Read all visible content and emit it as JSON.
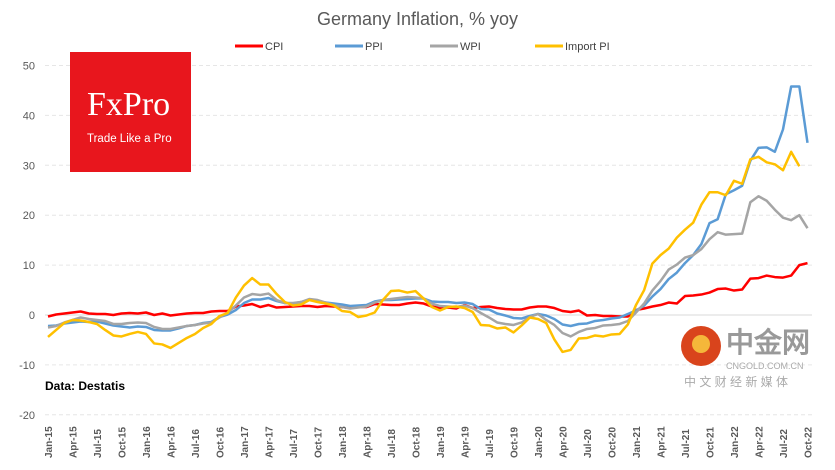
{
  "chart_data": {
    "type": "line",
    "title": "Germany Inflation, % yoy",
    "xlabel": "",
    "ylabel": "",
    "ylim": [
      -20,
      50
    ],
    "yticks": [
      -20,
      -10,
      0,
      10,
      20,
      30,
      40,
      50
    ],
    "x_start": "Jan-15",
    "x_tick_labels": [
      "Jan-15",
      "Apr-15",
      "Jul-15",
      "Oct-15",
      "Jan-16",
      "Apr-16",
      "Jul-16",
      "Oct-16",
      "Jan-17",
      "Apr-17",
      "Jul-17",
      "Oct-17",
      "Jan-18",
      "Apr-18",
      "Jul-18",
      "Oct-18",
      "Jan-19",
      "Apr-19",
      "Jul-19",
      "Oct-19",
      "Jan-20",
      "Apr-20",
      "Jul-20",
      "Oct-20",
      "Jan-21",
      "Apr-21",
      "Jul-21",
      "Oct-21",
      "Jan-22",
      "Apr-22",
      "Jul-22",
      "Oct-22"
    ],
    "grid": true,
    "legend": "top",
    "series": [
      {
        "name": "CPI",
        "color": "#ff0000",
        "values": [
          -0.3,
          0.1,
          0.3,
          0.5,
          0.7,
          0.3,
          0.2,
          0.2,
          0,
          0.3,
          0.4,
          0.3,
          0.5,
          0,
          0.3,
          -0.1,
          0.1,
          0.3,
          0.4,
          0.4,
          0.7,
          0.8,
          0.8,
          1.7,
          1.9,
          2.2,
          1.6,
          2.0,
          1.5,
          1.6,
          1.7,
          1.8,
          1.8,
          1.6,
          1.8,
          1.7,
          1.6,
          1.4,
          1.6,
          1.6,
          2.2,
          2.1,
          2.0,
          2.0,
          2.3,
          2.5,
          2.3,
          1.7,
          1.4,
          1.5,
          1.3,
          2.0,
          1.4,
          1.6,
          1.7,
          1.4,
          1.2,
          1.1,
          1.1,
          1.5,
          1.7,
          1.7,
          1.4,
          0.8,
          0.6,
          0.9,
          -0.1,
          0,
          -0.2,
          -0.2,
          -0.3,
          -0.3,
          1.0,
          1.3,
          1.7,
          2.0,
          2.5,
          2.3,
          3.8,
          3.9,
          4.1,
          4.5,
          5.2,
          5.3,
          4.9,
          5.1,
          7.3,
          7.4,
          7.9,
          7.6,
          7.5,
          7.9,
          10.0,
          10.4
        ]
      },
      {
        "name": "PPI",
        "color": "#5b9bd5",
        "values": [
          -2.2,
          -2.1,
          -1.7,
          -1.5,
          -1.3,
          -1.4,
          -1.3,
          -1.7,
          -2.1,
          -2.3,
          -2.5,
          -2.3,
          -2.4,
          -3.0,
          -3.1,
          -3.1,
          -2.7,
          -2.2,
          -2.0,
          -1.6,
          -1.4,
          -0.4,
          0.1,
          1.0,
          2.4,
          3.1,
          3.1,
          3.4,
          2.8,
          2.4,
          2.3,
          2.6,
          3.1,
          2.7,
          2.5,
          2.3,
          2.1,
          1.8,
          1.9,
          2.0,
          2.7,
          3.0,
          3.0,
          3.1,
          3.2,
          3.3,
          3.3,
          2.7,
          2.6,
          2.6,
          2.4,
          2.5,
          2.2,
          1.2,
          1.1,
          0.3,
          -0.1,
          -0.6,
          -0.7,
          -0.2,
          0.2,
          -0.1,
          -0.8,
          -1.9,
          -2.2,
          -1.8,
          -1.7,
          -1.2,
          -1.0,
          -0.7,
          -0.5,
          0.2,
          0.9,
          1.9,
          3.7,
          5.2,
          7.2,
          8.5,
          10.4,
          12.0,
          14.2,
          18.4,
          19.2,
          24.2,
          25.0,
          25.9,
          30.9,
          33.5,
          33.6,
          32.7,
          37.2,
          45.8,
          45.8,
          34.5
        ]
      },
      {
        "name": "WPI",
        "color": "#a5a5a5",
        "values": [
          -2.5,
          -2.2,
          -1.5,
          -1.0,
          -0.5,
          -0.8,
          -1,
          -1.2,
          -1.8,
          -1.8,
          -1.6,
          -1.5,
          -1.6,
          -2.4,
          -2.8,
          -2.8,
          -2.5,
          -2.2,
          -2,
          -1.7,
          -1.5,
          -0.5,
          0.5,
          1.9,
          3.5,
          4.2,
          4.0,
          4.3,
          3.0,
          2.4,
          2.4,
          2.6,
          3.2,
          3.0,
          2.5,
          2.0,
          1.6,
          1.3,
          1.5,
          1.7,
          2.5,
          3.0,
          3.2,
          3.4,
          3.6,
          3.5,
          3.3,
          2.3,
          1.8,
          1.7,
          1.6,
          1.9,
          1.4,
          0.4,
          -0.5,
          -1.5,
          -1.8,
          -2.0,
          -1.5,
          -0.4,
          0.2,
          -1.0,
          -2.0,
          -3.6,
          -4.3,
          -3.4,
          -2.8,
          -2.6,
          -2.1,
          -2.0,
          -1.8,
          -1.2,
          0.5,
          2.3,
          4.9,
          6.8,
          9.1,
          10.1,
          11.5,
          12.0,
          13.2,
          15.2,
          16.6,
          16.1,
          16.2,
          16.3,
          22.6,
          23.8,
          22.9,
          21.1,
          19.5,
          19.0,
          20.0,
          17.4
        ]
      },
      {
        "name": "Import PI",
        "color": "#ffc000",
        "values": [
          -4.4,
          -3.0,
          -1.6,
          -1.0,
          -1.1,
          -1.4,
          -1.8,
          -3.0,
          -4.1,
          -4.3,
          -3.8,
          -3.4,
          -3.8,
          -5.7,
          -5.9,
          -6.6,
          -5.6,
          -4.6,
          -3.8,
          -2.6,
          -1.8,
          -0.2,
          0.4,
          3.5,
          5.9,
          7.4,
          6.1,
          6.1,
          4.2,
          2.6,
          1.9,
          2.1,
          3.0,
          2.6,
          2.3,
          1.9,
          0.8,
          0.6,
          -0.4,
          -0.1,
          0.5,
          3.0,
          4.8,
          4.9,
          4.5,
          4.8,
          3.3,
          1.6,
          0.9,
          1.6,
          1.7,
          1.4,
          0.6,
          -2.0,
          -2.1,
          -2.7,
          -2.5,
          -3.5,
          -2.1,
          -0.5,
          -0.8,
          -1.6,
          -4.9,
          -7.4,
          -7.0,
          -4.7,
          -4.6,
          -4.1,
          -4.3,
          -3.9,
          -3.8,
          -1.9,
          2.0,
          5.0,
          10.3,
          12.0,
          13.3,
          15.5,
          17.1,
          18.5,
          22.1,
          24.6,
          24.6,
          24.0,
          26.9,
          26.3,
          31.2,
          31.7,
          30.6,
          30.2,
          29.0,
          32.7,
          29.8
        ]
      }
    ]
  },
  "logo": {
    "brand": "FxPro",
    "tagline": "Trade Like a Pro"
  },
  "source": "Data: Destatis",
  "watermark": {
    "name": "中金网",
    "url": "CNGOLD.COM.CN",
    "tagline": "中 文 财 经 新 媒 体"
  }
}
